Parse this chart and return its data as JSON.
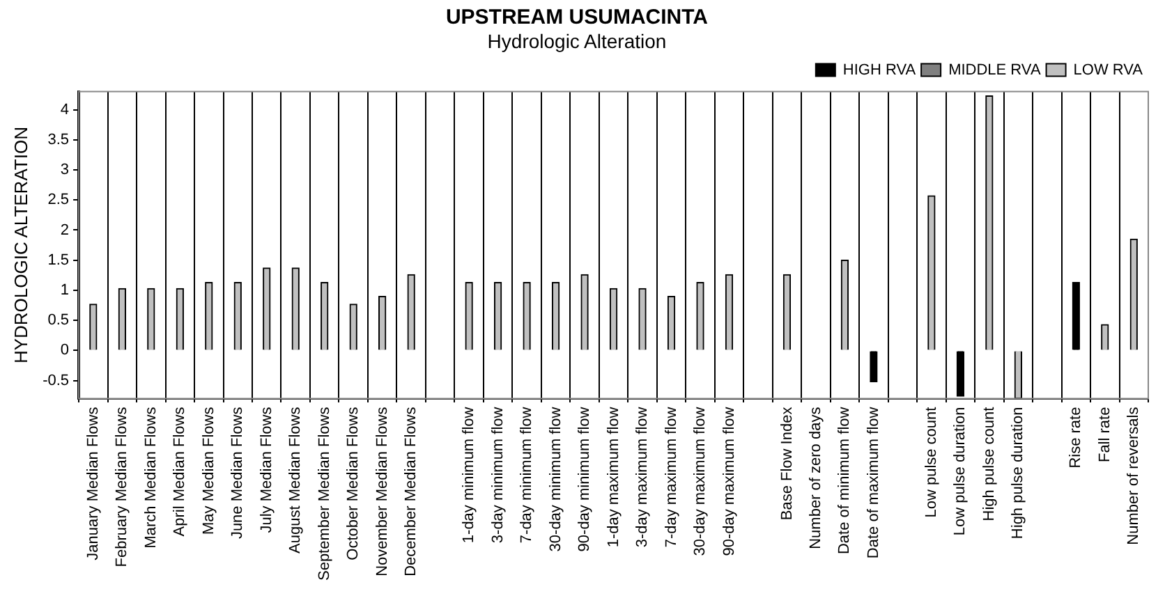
{
  "chart_data": {
    "type": "bar",
    "title": "UPSTREAM USUMACINTA",
    "subtitle": "Hydrologic Alteration",
    "ylabel": "HYDROLOGIC ALTERATION",
    "categories": [
      "January Median Flows",
      "February Median Flows",
      "March Median Flows",
      "April Median Flows",
      "May Median Flows",
      "June Median Flows",
      "July Median Flows",
      "August Median Flows",
      "September Median Flows",
      "October Median Flows",
      "November Median Flows",
      "December Median Flows",
      null,
      "1-day minimum flow",
      "3-day minimum flow",
      "7-day minimum flow",
      "30-day minimum flow",
      "90-day minimum flow",
      "1-day maximum flow",
      "3-day maximum flow",
      "7-day maximum flow",
      "30-day maximum flow",
      "90-day maximum flow",
      null,
      "Base Flow Index",
      "Number of zero days",
      "Date of minimum flow",
      "Date of maximum flow",
      null,
      "Low pulse count",
      "Low pulse duration",
      "High pulse count",
      "High pulse duration",
      null,
      "Rise rate",
      "Fall rate",
      "Number of reversals"
    ],
    "series": [
      {
        "name": "HIGH RVA",
        "color": "#000000",
        "values": [
          null,
          null,
          null,
          null,
          null,
          null,
          null,
          null,
          null,
          null,
          null,
          null,
          null,
          null,
          null,
          null,
          null,
          null,
          null,
          null,
          null,
          null,
          null,
          null,
          null,
          null,
          null,
          -0.52,
          null,
          null,
          -0.76,
          null,
          null,
          null,
          1.13,
          null,
          null
        ]
      },
      {
        "name": "MIDDLE RVA",
        "color": "#808080",
        "values": [
          null,
          null,
          null,
          null,
          null,
          null,
          null,
          null,
          null,
          null,
          null,
          null,
          null,
          null,
          null,
          null,
          null,
          null,
          null,
          null,
          null,
          null,
          null,
          null,
          null,
          null,
          null,
          null,
          null,
          null,
          null,
          null,
          null,
          null,
          null,
          null,
          null
        ]
      },
      {
        "name": "LOW RVA",
        "color": "#c0c0c0",
        "values": [
          0.77,
          1.03,
          1.03,
          1.03,
          1.13,
          1.13,
          1.37,
          1.37,
          1.13,
          0.77,
          0.9,
          1.26,
          null,
          1.13,
          1.13,
          1.13,
          1.13,
          1.26,
          1.03,
          1.03,
          0.9,
          1.13,
          1.26,
          null,
          1.26,
          0,
          1.5,
          null,
          null,
          2.57,
          null,
          4.23,
          -0.8,
          null,
          null,
          0.43,
          1.85
        ]
      }
    ],
    "stacked": true,
    "ylim": [
      -0.8,
      4.3
    ],
    "yticks": [
      -0.5,
      0,
      0.5,
      1,
      1.5,
      2,
      2.5,
      3,
      3.5,
      4
    ],
    "grid": "x",
    "legend": "top right"
  }
}
